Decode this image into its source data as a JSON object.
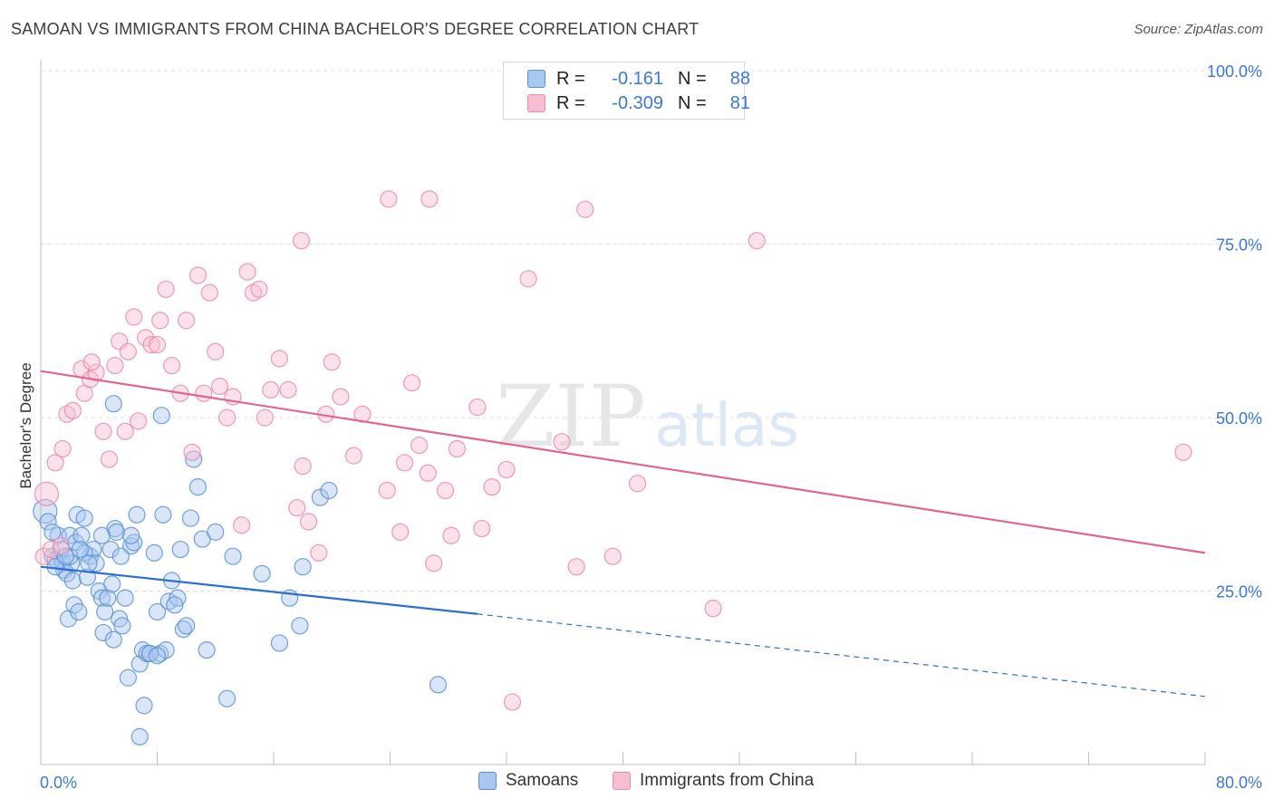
{
  "header": {
    "title": "SAMOAN VS IMMIGRANTS FROM CHINA BACHELOR'S DEGREE CORRELATION CHART",
    "source": "Source: ZipAtlas.com"
  },
  "watermark": {
    "zip": "ZIP",
    "atlas": "atlas"
  },
  "colors": {
    "samoans_fill": "#a9c8ef",
    "samoans_stroke": "#5b8fd6",
    "samoans_line": "#2a6fd1",
    "china_fill": "#f6bfd0",
    "china_stroke": "#e88aa8",
    "china_line": "#e06690",
    "axis_label": "#3b78d8",
    "grid": "#dcdcdc"
  },
  "legend_top": {
    "rows": [
      {
        "key": "R =",
        "r": "-0.161",
        "n_key": "N =",
        "n": "88"
      },
      {
        "key": "R =",
        "r": "-0.309",
        "n_key": "N =",
        "n": "81"
      }
    ]
  },
  "legend_bottom": {
    "items": [
      "Samoans",
      "Immigrants from China"
    ]
  },
  "chart_data": {
    "type": "scatter",
    "title": "SAMOAN VS IMMIGRANTS FROM CHINA BACHELOR'S DEGREE CORRELATION CHART",
    "xlabel": "",
    "ylabel": "Bachelor's Degree",
    "xlim": [
      0,
      80
    ],
    "ylim": [
      0,
      100
    ],
    "x_tick_labels": [
      "0.0%",
      "80.0%"
    ],
    "y_ticks": [
      25,
      50,
      75,
      100
    ],
    "y_tick_labels": [
      "25.0%",
      "50.0%",
      "75.0%",
      "100.0%"
    ],
    "grid": true,
    "legend_placement": "top-center",
    "series": [
      {
        "name": "Samoans",
        "r": -0.161,
        "n": 88,
        "trend": {
          "x0": 0,
          "y0": 28.5,
          "x1": 30,
          "y1": 21.7,
          "dashed_to_x": 80,
          "dashed_to_y": 9.8
        },
        "points": [
          [
            0.3,
            36.5
          ],
          [
            0.5,
            35
          ],
          [
            0.8,
            30
          ],
          [
            1,
            29.5
          ],
          [
            1.2,
            33
          ],
          [
            1.4,
            31
          ],
          [
            1.5,
            29
          ],
          [
            1.6,
            28
          ],
          [
            1.8,
            27.5
          ],
          [
            1.9,
            21
          ],
          [
            2,
            33
          ],
          [
            2.1,
            29
          ],
          [
            2.2,
            26.5
          ],
          [
            2.3,
            23
          ],
          [
            2.4,
            32
          ],
          [
            2.5,
            36
          ],
          [
            2.6,
            22
          ],
          [
            2.8,
            33
          ],
          [
            3,
            35.5
          ],
          [
            3.2,
            27
          ],
          [
            3.4,
            30
          ],
          [
            3.6,
            31
          ],
          [
            3.8,
            29
          ],
          [
            4,
            25
          ],
          [
            4.2,
            24
          ],
          [
            4.3,
            19
          ],
          [
            4.4,
            22
          ],
          [
            4.6,
            24
          ],
          [
            4.8,
            31
          ],
          [
            5,
            18
          ],
          [
            5.1,
            34
          ],
          [
            5.2,
            33.5
          ],
          [
            5.4,
            21
          ],
          [
            5.6,
            20
          ],
          [
            5.8,
            24
          ],
          [
            6,
            12.5
          ],
          [
            6.2,
            31.5
          ],
          [
            6.4,
            32
          ],
          [
            6.6,
            36
          ],
          [
            6.8,
            14.5
          ],
          [
            7,
            16.5
          ],
          [
            7.1,
            8.5
          ],
          [
            7.3,
            16
          ],
          [
            7.5,
            16
          ],
          [
            7.8,
            30.5
          ],
          [
            8,
            22
          ],
          [
            8.2,
            16
          ],
          [
            8.4,
            36
          ],
          [
            8.6,
            16.5
          ],
          [
            8.8,
            23.5
          ],
          [
            9,
            26.5
          ],
          [
            9.4,
            24
          ],
          [
            9.6,
            31
          ],
          [
            9.8,
            19.5
          ],
          [
            10,
            20
          ],
          [
            10.3,
            35.5
          ],
          [
            10.5,
            44
          ],
          [
            10.8,
            40
          ],
          [
            11.1,
            32.5
          ],
          [
            11.4,
            16.5
          ],
          [
            12,
            33.5
          ],
          [
            13.2,
            30
          ],
          [
            15.2,
            27.5
          ],
          [
            16.4,
            17.5
          ],
          [
            17.1,
            24
          ],
          [
            17.8,
            20
          ],
          [
            18,
            28.5
          ],
          [
            19.2,
            38.5
          ],
          [
            19.8,
            39.5
          ],
          [
            27.3,
            11.5
          ],
          [
            6.8,
            4
          ],
          [
            12.8,
            9.5
          ],
          [
            5,
            52
          ],
          [
            8.3,
            50.3
          ],
          [
            3,
            30.5
          ],
          [
            2,
            30
          ],
          [
            4.2,
            33
          ],
          [
            7.5,
            16
          ],
          [
            8,
            15.7
          ],
          [
            1,
            28.5
          ],
          [
            6.2,
            33
          ],
          [
            3.3,
            29
          ],
          [
            2.7,
            31
          ],
          [
            0.8,
            33.5
          ],
          [
            4.9,
            26
          ],
          [
            9.2,
            23
          ],
          [
            5.5,
            30
          ],
          [
            1.7,
            30
          ]
        ]
      },
      {
        "name": "Immigrants from China",
        "r": -0.309,
        "n": 81,
        "trend": {
          "x0": 0,
          "y0": 56.7,
          "x1": 80,
          "y1": 30.5
        },
        "points": [
          [
            0.2,
            30
          ],
          [
            0.4,
            39
          ],
          [
            0.7,
            31
          ],
          [
            1,
            43.5
          ],
          [
            1.5,
            45.5
          ],
          [
            1.8,
            50.5
          ],
          [
            2.2,
            51
          ],
          [
            2.8,
            57
          ],
          [
            3,
            53.5
          ],
          [
            3.4,
            55.5
          ],
          [
            3.8,
            56.5
          ],
          [
            4.3,
            48
          ],
          [
            4.7,
            44
          ],
          [
            5.1,
            57.5
          ],
          [
            5.4,
            61
          ],
          [
            5.8,
            48
          ],
          [
            6,
            59.5
          ],
          [
            6.4,
            64.5
          ],
          [
            6.7,
            49.5
          ],
          [
            7.2,
            61.5
          ],
          [
            7.6,
            60.5
          ],
          [
            8,
            60.5
          ],
          [
            8.2,
            64
          ],
          [
            8.6,
            68.5
          ],
          [
            9,
            57.5
          ],
          [
            9.6,
            53.5
          ],
          [
            10,
            64
          ],
          [
            10.4,
            45
          ],
          [
            10.8,
            70.5
          ],
          [
            11.2,
            53.5
          ],
          [
            11.6,
            68
          ],
          [
            12,
            59.5
          ],
          [
            12.3,
            54.5
          ],
          [
            12.8,
            50
          ],
          [
            13.2,
            53
          ],
          [
            13.8,
            34.5
          ],
          [
            14.2,
            71
          ],
          [
            14.6,
            68
          ],
          [
            15,
            68.5
          ],
          [
            15.4,
            50
          ],
          [
            15.8,
            54
          ],
          [
            16.4,
            58.5
          ],
          [
            17,
            54
          ],
          [
            17.6,
            37
          ],
          [
            18,
            43
          ],
          [
            18.4,
            35
          ],
          [
            19.1,
            30.5
          ],
          [
            19.6,
            50.5
          ],
          [
            20,
            58
          ],
          [
            20.6,
            53
          ],
          [
            21.5,
            44.5
          ],
          [
            22.1,
            50.5
          ],
          [
            23.8,
            39.5
          ],
          [
            24.7,
            33.5
          ],
          [
            25,
            43.5
          ],
          [
            25.5,
            55
          ],
          [
            26,
            46
          ],
          [
            26.6,
            42
          ],
          [
            27,
            29
          ],
          [
            27.8,
            39.5
          ],
          [
            28.2,
            33
          ],
          [
            28.6,
            45.5
          ],
          [
            30,
            51.5
          ],
          [
            30.3,
            34
          ],
          [
            31,
            40
          ],
          [
            32,
            42.5
          ],
          [
            32.4,
            9
          ],
          [
            33.5,
            70
          ],
          [
            35.8,
            46.5
          ],
          [
            36.8,
            28.5
          ],
          [
            39.3,
            30
          ],
          [
            41,
            40.5
          ],
          [
            46.2,
            22.5
          ],
          [
            49.2,
            75.5
          ],
          [
            23.9,
            81.5
          ],
          [
            26.7,
            81.5
          ],
          [
            37.4,
            80
          ],
          [
            17.9,
            75.5
          ],
          [
            78.5,
            45
          ],
          [
            3.5,
            58
          ],
          [
            1.4,
            31.5
          ]
        ]
      }
    ]
  }
}
